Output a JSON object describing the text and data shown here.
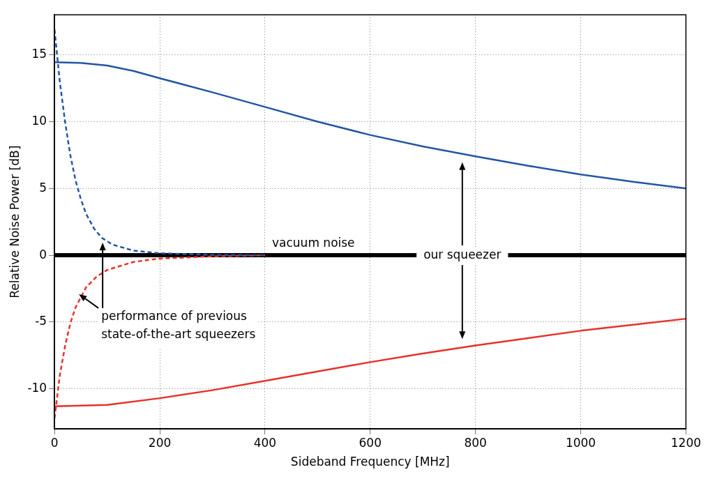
{
  "chart_data": {
    "type": "line",
    "xlabel": "Sideband Frequency [MHz]",
    "ylabel": "Relative Noise Power [dB]",
    "xlim": [
      0,
      1200
    ],
    "xticks": [
      0,
      200,
      400,
      600,
      800,
      1000,
      1200
    ],
    "ylim": [
      -13,
      18
    ],
    "yticks": [
      -10,
      -5,
      0,
      5,
      10,
      15
    ],
    "grid": true,
    "legend": false,
    "marker": "none",
    "series": [
      {
        "color": "#2355a5",
        "line_style": "solid",
        "x": [
          0,
          50,
          100,
          150,
          200,
          300,
          400,
          500,
          600,
          700,
          800,
          900,
          1000,
          1100,
          1200
        ],
        "values": [
          14.45,
          14.4,
          14.2,
          13.8,
          13.25,
          12.2,
          11.1,
          10.0,
          9.0,
          8.15,
          7.4,
          6.7,
          6.05,
          5.5,
          5.0
        ]
      },
      {
        "color": "#e8302a",
        "line_style": "solid",
        "x": [
          0,
          100,
          200,
          300,
          400,
          500,
          600,
          700,
          800,
          900,
          1000,
          1100,
          1200
        ],
        "values": [
          -11.3,
          -11.2,
          -10.7,
          -10.1,
          -9.4,
          -8.7,
          -8.0,
          -7.35,
          -6.75,
          -6.2,
          -5.65,
          -5.2,
          -4.75
        ]
      },
      {
        "color": "#2355a5",
        "line_style": "dashed",
        "x": [
          0,
          10,
          20,
          30,
          40,
          50,
          60,
          75,
          90,
          110,
          150,
          200,
          300,
          400
        ],
        "values": [
          16.9,
          13,
          10,
          7.5,
          5.6,
          4.2,
          3.1,
          2.0,
          1.3,
          0.8,
          0.35,
          0.15,
          0.03,
          0
        ]
      },
      {
        "color": "#e8302a",
        "line_style": "dashed",
        "x": [
          0,
          10,
          20,
          30,
          40,
          60,
          80,
          100,
          150,
          200,
          300,
          400
        ],
        "values": [
          -12.2,
          -9,
          -6.8,
          -5.1,
          -3.9,
          -2.4,
          -1.6,
          -1.1,
          -0.5,
          -0.25,
          -0.08,
          0
        ]
      }
    ],
    "ref_lines": [
      {
        "axis": "y",
        "value": 0,
        "label": "vacuum noise",
        "color": "#000000"
      }
    ],
    "annotations": [
      {
        "text": "our squeezer",
        "x": 775,
        "y": 0
      },
      "performance of previous\nstate-of-the-art squeezers"
    ]
  }
}
